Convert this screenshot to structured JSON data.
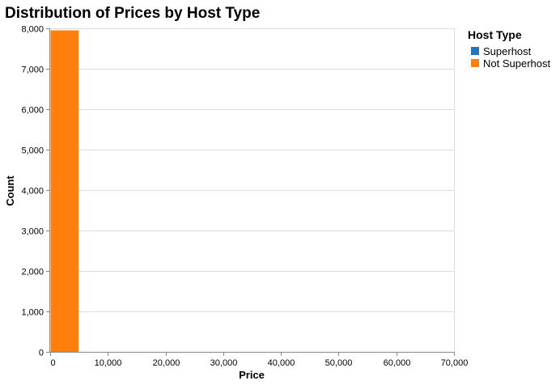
{
  "chart_data": {
    "type": "bar",
    "title": "Distribution of Prices by Host Type",
    "xlabel": "Price",
    "ylabel": "Count",
    "xlim": [
      0,
      70000
    ],
    "ylim": [
      0,
      8000
    ],
    "x_ticks": [
      0,
      10000,
      20000,
      30000,
      40000,
      50000,
      60000,
      70000
    ],
    "y_ticks": [
      0,
      1000,
      2000,
      3000,
      4000,
      5000,
      6000,
      7000,
      8000
    ],
    "x_tick_labels": [
      "0",
      "10,000",
      "20,000",
      "30,000",
      "40,000",
      "50,000",
      "60,000",
      "70,000"
    ],
    "y_tick_labels": [
      "0",
      "1,000",
      "2,000",
      "3,000",
      "4,000",
      "5,000",
      "6,000",
      "7,000",
      "8,000"
    ],
    "grid": true,
    "stacked": true,
    "legend": {
      "title": "Host Type",
      "placement": "right"
    },
    "series": [
      {
        "name": "Superhost",
        "color": "#1f77b4",
        "bins": [
          {
            "x0": 0,
            "x1": 5000,
            "count": 0
          }
        ]
      },
      {
        "name": "Not Superhost",
        "color": "#ff7f0e",
        "bins": [
          {
            "x0": 0,
            "x1": 5000,
            "count": 7950
          }
        ]
      }
    ]
  }
}
